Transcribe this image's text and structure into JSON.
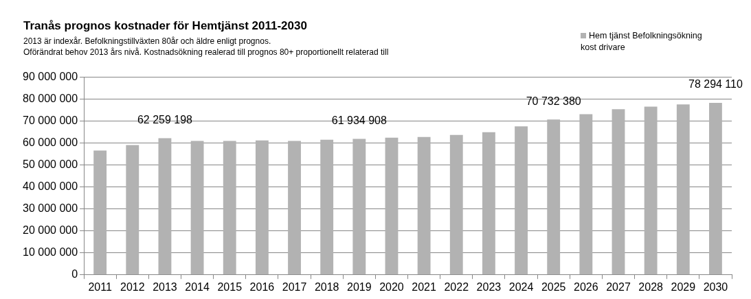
{
  "chart_data": {
    "type": "bar",
    "title": "Tranås prognos kostnader för Hemtjänst 2011-2030",
    "subtitle": "2013 är indexår.  Befolkningstillväxten 80år och äldre enligt prognos.\nOförändrat behov 2013 års nivå. Kostnadsökning  realerad till prognos  80+  proportionellt relaterad till",
    "categories": [
      "2011",
      "2012",
      "2013",
      "2014",
      "2015",
      "2016",
      "2017",
      "2018",
      "2019",
      "2020",
      "2021",
      "2022",
      "2023",
      "2024",
      "2025",
      "2026",
      "2027",
      "2028",
      "2029",
      "2030"
    ],
    "series": [
      {
        "name": "Hem tjänst Befolkningsökning kost drivare",
        "color": "#b2b2b2",
        "values": [
          56600000,
          59100000,
          62259198,
          61000000,
          61000000,
          61200000,
          61000000,
          61500000,
          61934908,
          62500000,
          62800000,
          63700000,
          65000000,
          67600000,
          70732380,
          73200000,
          75400000,
          76600000,
          77600000,
          78294110
        ],
        "value_labels": [
          null,
          null,
          "62 259 198",
          null,
          null,
          null,
          null,
          null,
          "61 934 908",
          null,
          null,
          null,
          null,
          null,
          "70 732 380",
          null,
          null,
          null,
          null,
          "78 294 110"
        ]
      }
    ],
    "ylim": [
      0,
      90000000
    ],
    "yticks": [
      {
        "value": 0,
        "label": "0"
      },
      {
        "value": 10000000,
        "label": "10 000 000"
      },
      {
        "value": 20000000,
        "label": "20 000 000"
      },
      {
        "value": 30000000,
        "label": "30 000 000"
      },
      {
        "value": 40000000,
        "label": "40 000 000"
      },
      {
        "value": 50000000,
        "label": "50 000 000"
      },
      {
        "value": 60000000,
        "label": "60 000 000"
      },
      {
        "value": 70000000,
        "label": "70 000 000"
      },
      {
        "value": 80000000,
        "label": "80 000 000"
      },
      {
        "value": 90000000,
        "label": "90 000 000"
      }
    ],
    "grid": "y",
    "legend": "top right"
  }
}
